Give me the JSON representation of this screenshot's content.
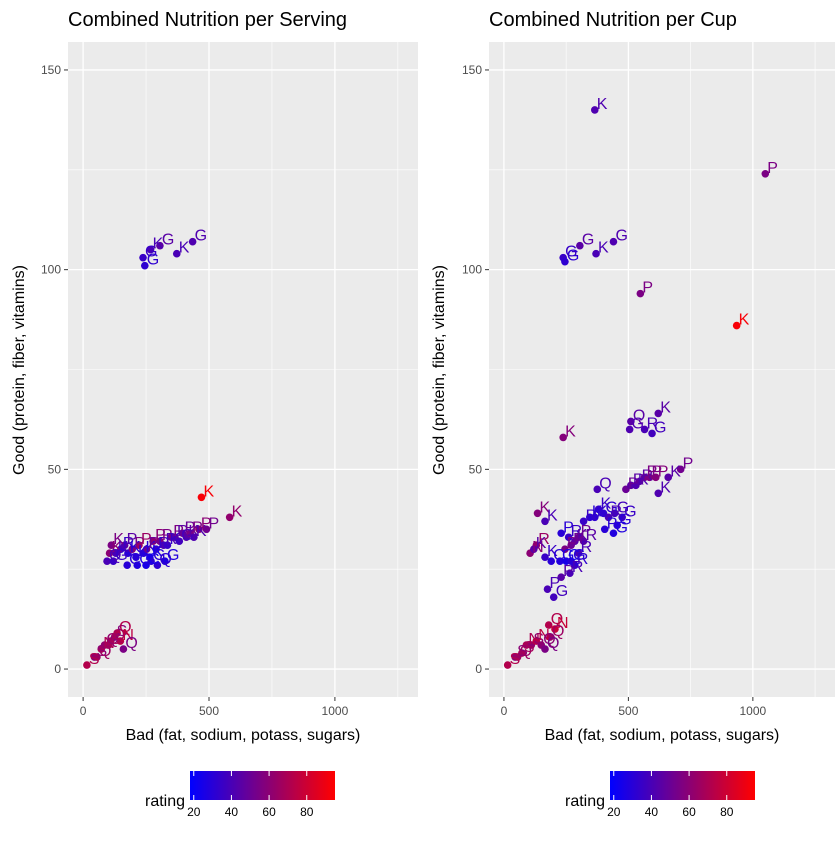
{
  "chart_data": [
    {
      "type": "scatter",
      "title": "Combined Nutrition per Serving",
      "xlabel": "Bad (fat, sodium, potass, sugars)",
      "ylabel": "Good (protein, fiber, vitamins)",
      "xlim": [
        -60,
        1330
      ],
      "ylim": [
        -7,
        157
      ],
      "xticks": [
        0,
        500,
        1000
      ],
      "yticks": [
        0,
        50,
        100,
        150
      ],
      "grid": true,
      "color_by": "rating",
      "points": [
        {
          "x": 238,
          "y": 103,
          "label": "G",
          "rating": 35
        },
        {
          "x": 245,
          "y": 101,
          "label": "G",
          "rating": 32
        },
        {
          "x": 268,
          "y": 105,
          "label": "K",
          "rating": 40
        },
        {
          "x": 305,
          "y": 106,
          "label": "G",
          "rating": 45
        },
        {
          "x": 372,
          "y": 104,
          "label": "K",
          "rating": 40
        },
        {
          "x": 435,
          "y": 107,
          "label": "G",
          "rating": 42
        },
        {
          "x": 470,
          "y": 43,
          "label": "K",
          "rating": 93
        },
        {
          "x": 582,
          "y": 38,
          "label": "K",
          "rating": 62
        },
        {
          "x": 105,
          "y": 29,
          "label": "K",
          "rating": 60
        },
        {
          "x": 112,
          "y": 31,
          "label": "K",
          "rating": 55
        },
        {
          "x": 130,
          "y": 29,
          "label": "K",
          "rating": 40
        },
        {
          "x": 150,
          "y": 30,
          "label": "R",
          "rating": 35
        },
        {
          "x": 165,
          "y": 31,
          "label": "P",
          "rating": 45
        },
        {
          "x": 178,
          "y": 29,
          "label": "K",
          "rating": 30
        },
        {
          "x": 195,
          "y": 30,
          "label": "P",
          "rating": 55
        },
        {
          "x": 210,
          "y": 28,
          "label": "K",
          "rating": 30
        },
        {
          "x": 222,
          "y": 31,
          "label": "P",
          "rating": 65
        },
        {
          "x": 240,
          "y": 29,
          "label": "K",
          "rating": 30
        },
        {
          "x": 252,
          "y": 30,
          "label": "P",
          "rating": 50
        },
        {
          "x": 265,
          "y": 28,
          "label": "K",
          "rating": 25
        },
        {
          "x": 278,
          "y": 32,
          "label": "P",
          "rating": 60
        },
        {
          "x": 290,
          "y": 30,
          "label": "R",
          "rating": 35
        },
        {
          "x": 305,
          "y": 32,
          "label": "P",
          "rating": 55
        },
        {
          "x": 320,
          "y": 31,
          "label": "R",
          "rating": 40
        },
        {
          "x": 335,
          "y": 31,
          "label": "K",
          "rating": 35
        },
        {
          "x": 350,
          "y": 33,
          "label": "P",
          "rating": 55
        },
        {
          "x": 365,
          "y": 33,
          "label": "R",
          "rating": 45
        },
        {
          "x": 382,
          "y": 32,
          "label": "G",
          "rating": 38
        },
        {
          "x": 395,
          "y": 34,
          "label": "P",
          "rating": 50
        },
        {
          "x": 410,
          "y": 33,
          "label": "K",
          "rating": 45
        },
        {
          "x": 425,
          "y": 34,
          "label": "P",
          "rating": 55
        },
        {
          "x": 440,
          "y": 33,
          "label": "K",
          "rating": 42
        },
        {
          "x": 460,
          "y": 35,
          "label": "P",
          "rating": 60
        },
        {
          "x": 490,
          "y": 35,
          "label": "P",
          "rating": 52
        },
        {
          "x": 95,
          "y": 27,
          "label": "Q",
          "rating": 40
        },
        {
          "x": 120,
          "y": 27,
          "label": "G",
          "rating": 35
        },
        {
          "x": 175,
          "y": 26,
          "label": "C",
          "rating": 30
        },
        {
          "x": 215,
          "y": 26,
          "label": "G",
          "rating": 28
        },
        {
          "x": 250,
          "y": 26,
          "label": "C",
          "rating": 25
        },
        {
          "x": 270,
          "y": 27,
          "label": "G",
          "rating": 30
        },
        {
          "x": 295,
          "y": 26,
          "label": "Q",
          "rating": 32
        },
        {
          "x": 325,
          "y": 27,
          "label": "G",
          "rating": 28
        },
        {
          "x": 15,
          "y": 1,
          "label": "S",
          "rating": 72
        },
        {
          "x": 45,
          "y": 3,
          "label": "S",
          "rating": 60
        },
        {
          "x": 55,
          "y": 3,
          "label": "Q",
          "rating": 65
        },
        {
          "x": 72,
          "y": 5,
          "label": "N",
          "rating": 70
        },
        {
          "x": 85,
          "y": 6,
          "label": "Q",
          "rating": 62
        },
        {
          "x": 100,
          "y": 6,
          "label": "S",
          "rating": 68
        },
        {
          "x": 110,
          "y": 7,
          "label": "Q",
          "rating": 68
        },
        {
          "x": 125,
          "y": 8,
          "label": "S",
          "rating": 58
        },
        {
          "x": 135,
          "y": 9,
          "label": "Q",
          "rating": 72
        },
        {
          "x": 148,
          "y": 7,
          "label": "N",
          "rating": 75
        },
        {
          "x": 160,
          "y": 5,
          "label": "Q",
          "rating": 55
        }
      ]
    },
    {
      "type": "scatter",
      "title": "Combined Nutrition per Cup",
      "xlabel": "Bad (fat, sodium, potass, sugars)",
      "ylabel": "Good (protein, fiber, vitamins)",
      "xlim": [
        -60,
        1330
      ],
      "ylim": [
        -7,
        157
      ],
      "xticks": [
        0,
        500,
        1000
      ],
      "yticks": [
        0,
        50,
        100,
        150
      ],
      "grid": true,
      "color_by": "rating",
      "points": [
        {
          "x": 365,
          "y": 140,
          "label": "K",
          "rating": 42
        },
        {
          "x": 1050,
          "y": 124,
          "label": "P",
          "rating": 55
        },
        {
          "x": 935,
          "y": 86,
          "label": "K",
          "rating": 93
        },
        {
          "x": 548,
          "y": 94,
          "label": "P",
          "rating": 55
        },
        {
          "x": 238,
          "y": 103,
          "label": "G",
          "rating": 35
        },
        {
          "x": 245,
          "y": 102,
          "label": "G",
          "rating": 32
        },
        {
          "x": 305,
          "y": 106,
          "label": "G",
          "rating": 45
        },
        {
          "x": 370,
          "y": 104,
          "label": "K",
          "rating": 40
        },
        {
          "x": 440,
          "y": 107,
          "label": "G",
          "rating": 42
        },
        {
          "x": 238,
          "y": 58,
          "label": "K",
          "rating": 58
        },
        {
          "x": 510,
          "y": 62,
          "label": "Q",
          "rating": 45
        },
        {
          "x": 505,
          "y": 60,
          "label": "G",
          "rating": 42
        },
        {
          "x": 565,
          "y": 60,
          "label": "R",
          "rating": 40
        },
        {
          "x": 595,
          "y": 59,
          "label": "G",
          "rating": 38
        },
        {
          "x": 620,
          "y": 64,
          "label": "K",
          "rating": 45
        },
        {
          "x": 375,
          "y": 45,
          "label": "Q",
          "rating": 40
        },
        {
          "x": 490,
          "y": 45,
          "label": "P",
          "rating": 50
        },
        {
          "x": 510,
          "y": 46,
          "label": "R",
          "rating": 45
        },
        {
          "x": 530,
          "y": 46,
          "label": "K",
          "rating": 42
        },
        {
          "x": 545,
          "y": 47,
          "label": "R",
          "rating": 45
        },
        {
          "x": 565,
          "y": 48,
          "label": "P",
          "rating": 55
        },
        {
          "x": 585,
          "y": 48,
          "label": "P",
          "rating": 55
        },
        {
          "x": 610,
          "y": 48,
          "label": "P",
          "rating": 58
        },
        {
          "x": 660,
          "y": 48,
          "label": "K",
          "rating": 45
        },
        {
          "x": 620,
          "y": 44,
          "label": "K",
          "rating": 42
        },
        {
          "x": 710,
          "y": 50,
          "label": "P",
          "rating": 52
        },
        {
          "x": 135,
          "y": 39,
          "label": "K",
          "rating": 58
        },
        {
          "x": 165,
          "y": 37,
          "label": "K",
          "rating": 40
        },
        {
          "x": 320,
          "y": 37,
          "label": "R",
          "rating": 35
        },
        {
          "x": 345,
          "y": 38,
          "label": "K",
          "rating": 30
        },
        {
          "x": 365,
          "y": 38,
          "label": "K",
          "rating": 32
        },
        {
          "x": 380,
          "y": 40,
          "label": "K",
          "rating": 35
        },
        {
          "x": 400,
          "y": 39,
          "label": "G",
          "rating": 32
        },
        {
          "x": 420,
          "y": 38,
          "label": "R",
          "rating": 40
        },
        {
          "x": 445,
          "y": 39,
          "label": "G",
          "rating": 38
        },
        {
          "x": 455,
          "y": 36,
          "label": "G",
          "rating": 30
        },
        {
          "x": 475,
          "y": 38,
          "label": "G",
          "rating": 35
        },
        {
          "x": 405,
          "y": 35,
          "label": "P",
          "rating": 30
        },
        {
          "x": 440,
          "y": 34,
          "label": "G",
          "rating": 28
        },
        {
          "x": 230,
          "y": 34,
          "label": "P",
          "rating": 30
        },
        {
          "x": 260,
          "y": 33,
          "label": "R",
          "rating": 35
        },
        {
          "x": 285,
          "y": 32,
          "label": "K",
          "rating": 45
        },
        {
          "x": 300,
          "y": 33,
          "label": "P",
          "rating": 50
        },
        {
          "x": 320,
          "y": 32,
          "label": "R",
          "rating": 45
        },
        {
          "x": 245,
          "y": 30,
          "label": "P",
          "rating": 55
        },
        {
          "x": 270,
          "y": 31,
          "label": "R",
          "rating": 50
        },
        {
          "x": 300,
          "y": 29,
          "label": "R",
          "rating": 40
        },
        {
          "x": 130,
          "y": 31,
          "label": "R",
          "rating": 65
        },
        {
          "x": 105,
          "y": 29,
          "label": "N",
          "rating": 60
        },
        {
          "x": 120,
          "y": 30,
          "label": "K",
          "rating": 45
        },
        {
          "x": 165,
          "y": 28,
          "label": "K",
          "rating": 35
        },
        {
          "x": 190,
          "y": 27,
          "label": "C",
          "rating": 30
        },
        {
          "x": 225,
          "y": 27,
          "label": "G",
          "rating": 28
        },
        {
          "x": 250,
          "y": 27,
          "label": "C",
          "rating": 25
        },
        {
          "x": 270,
          "y": 27,
          "label": "G",
          "rating": 30
        },
        {
          "x": 285,
          "y": 26,
          "label": "R",
          "rating": 32
        },
        {
          "x": 265,
          "y": 24,
          "label": "R",
          "rating": 40
        },
        {
          "x": 230,
          "y": 23,
          "label": "P",
          "rating": 45
        },
        {
          "x": 175,
          "y": 20,
          "label": "P",
          "rating": 40
        },
        {
          "x": 200,
          "y": 18,
          "label": "G",
          "rating": 38
        },
        {
          "x": 180,
          "y": 11,
          "label": "Q",
          "rating": 72
        },
        {
          "x": 205,
          "y": 10,
          "label": "N",
          "rating": 78
        },
        {
          "x": 15,
          "y": 1,
          "label": "S",
          "rating": 72
        },
        {
          "x": 45,
          "y": 3,
          "label": "S",
          "rating": 60
        },
        {
          "x": 55,
          "y": 3,
          "label": "Q",
          "rating": 65
        },
        {
          "x": 72,
          "y": 4,
          "label": "S",
          "rating": 68
        },
        {
          "x": 90,
          "y": 6,
          "label": "N",
          "rating": 70
        },
        {
          "x": 110,
          "y": 6,
          "label": "S",
          "rating": 62
        },
        {
          "x": 130,
          "y": 7,
          "label": "N",
          "rating": 75
        },
        {
          "x": 150,
          "y": 6,
          "label": "Q",
          "rating": 60
        },
        {
          "x": 165,
          "y": 5,
          "label": "Q",
          "rating": 55
        },
        {
          "x": 185,
          "y": 8,
          "label": "Q",
          "rating": 65
        }
      ]
    }
  ],
  "legend": {
    "title": "rating",
    "ticks": [
      20,
      40,
      60,
      80
    ],
    "min": 18,
    "max": 95,
    "color_low": "#0000ff",
    "color_high": "#ff0000"
  }
}
